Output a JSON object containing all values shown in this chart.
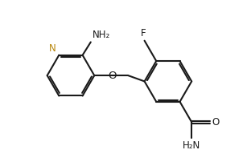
{
  "bg": "#ffffff",
  "lc": "#1a1a1a",
  "nc": "#b8860b",
  "lw": 1.5,
  "fs": 8.5,
  "r": 0.72,
  "xlim": [
    0.2,
    7.8
  ],
  "ylim": [
    0.3,
    4.2
  ]
}
